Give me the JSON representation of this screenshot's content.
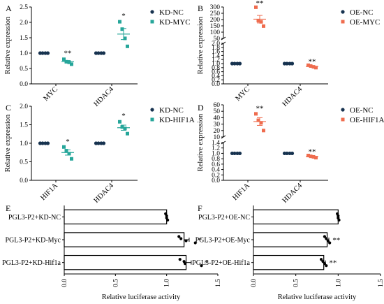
{
  "colors": {
    "nc": "#16324f",
    "knockdown": "#26a69a",
    "overexpression": "#ef6c4e",
    "bar_fill": "#ffffff",
    "axis": "#000000"
  },
  "chart_data": [
    {
      "panel": "A",
      "type": "scatter",
      "ylabel": "Relative expression",
      "categories": [
        "MYC",
        "HDAC4"
      ],
      "ylim": [
        0,
        2.5
      ],
      "yticks": [
        "0.0",
        "0.5",
        "1.0",
        "1.5",
        "2.0",
        "2.5"
      ],
      "legend": [
        "KD-NC",
        "KD-MYC"
      ],
      "series": [
        {
          "name": "KD-NC",
          "color_key": "nc",
          "points": [
            [
              0,
              1.0
            ],
            [
              0,
              1.0
            ],
            [
              0,
              1.0
            ],
            [
              0,
              1.0
            ],
            [
              1,
              1.0
            ],
            [
              1,
              1.0
            ],
            [
              1,
              1.0
            ],
            [
              1,
              1.0
            ]
          ]
        },
        {
          "name": "KD-MYC",
          "color_key": "knockdown",
          "points": [
            [
              0,
              0.8
            ],
            [
              0,
              0.72
            ],
            [
              0,
              0.7
            ],
            [
              0,
              0.64
            ],
            [
              1,
              2.02
            ],
            [
              1,
              1.78
            ],
            [
              1,
              1.48
            ],
            [
              1,
              1.22
            ]
          ],
          "means": [
            0.72,
            1.62
          ],
          "sem": [
            0.04,
            0.18
          ]
        }
      ],
      "annotations": [
        {
          "category": 0,
          "text": "**",
          "y": 0.92
        },
        {
          "category": 1,
          "text": "*",
          "y": 2.14
        }
      ]
    },
    {
      "panel": "B",
      "type": "scatter",
      "ylabel": "Relative expression",
      "categories": [
        "MYC",
        "HDAC4"
      ],
      "axis_break": true,
      "yticks_lower": [
        "0.0",
        "0.2",
        "0.4",
        "0.6",
        "0.8",
        "1.0",
        "1.2",
        "1.4",
        "1.6",
        "1.8",
        "2.0"
      ],
      "yticks_upper": [
        "50",
        "100",
        "150",
        "200",
        "250",
        "300"
      ],
      "legend": [
        "OE-NC",
        "OE-MYC"
      ],
      "series": [
        {
          "name": "OE-NC",
          "color_key": "nc",
          "points": [
            [
              0,
              1.0
            ],
            [
              0,
              1.0
            ],
            [
              0,
              1.0
            ],
            [
              0,
              1.0
            ],
            [
              1,
              1.0
            ],
            [
              1,
              1.0
            ],
            [
              1,
              1.0
            ],
            [
              1,
              1.0
            ]
          ]
        },
        {
          "name": "OE-MYC",
          "color_key": "overexpression",
          "points": [
            [
              0,
              298
            ],
            [
              0,
              192
            ],
            [
              0,
              182
            ],
            [
              0,
              148
            ],
            [
              1,
              0.92
            ],
            [
              1,
              0.88
            ],
            [
              1,
              0.84
            ],
            [
              1,
              0.8
            ]
          ],
          "means": [
            203,
            0.86
          ],
          "sem": [
            30,
            0.03
          ]
        }
      ],
      "annotations": [
        {
          "category": 0,
          "text": "**",
          "y": 312
        },
        {
          "category": 1,
          "text": "**",
          "y": 0.98
        }
      ]
    },
    {
      "panel": "C",
      "type": "scatter",
      "ylabel": "Relative expression",
      "categories": [
        "HIF1A",
        "HDAC4"
      ],
      "ylim": [
        0,
        2.0
      ],
      "yticks": [
        "0.0",
        "0.5",
        "1.0",
        "1.5",
        "2.0"
      ],
      "legend": [
        "KD-NC",
        "KD-HIF1A"
      ],
      "series": [
        {
          "name": "KD-NC",
          "color_key": "nc",
          "points": [
            [
              0,
              1.0
            ],
            [
              0,
              1.0
            ],
            [
              0,
              1.0
            ],
            [
              0,
              1.0
            ],
            [
              1,
              1.0
            ],
            [
              1,
              1.0
            ],
            [
              1,
              1.0
            ],
            [
              1,
              1.0
            ]
          ]
        },
        {
          "name": "KD-HIF1A",
          "color_key": "knockdown",
          "points": [
            [
              0,
              0.9
            ],
            [
              0,
              0.8
            ],
            [
              0,
              0.72
            ],
            [
              0,
              0.58
            ],
            [
              1,
              1.58
            ],
            [
              1,
              1.44
            ],
            [
              1,
              1.4
            ],
            [
              1,
              1.26
            ]
          ],
          "means": [
            0.75,
            1.42
          ],
          "sem": [
            0.07,
            0.07
          ]
        }
      ],
      "annotations": [
        {
          "category": 0,
          "text": "*",
          "y": 0.98
        },
        {
          "category": 1,
          "text": "*",
          "y": 1.68
        }
      ]
    },
    {
      "panel": "D",
      "type": "scatter",
      "ylabel": "Relative expression",
      "categories": [
        "HIF1A",
        "HDAC4"
      ],
      "axis_break": true,
      "yticks_lower": [
        "0.0",
        "0.2",
        "0.4",
        "0.6",
        "0.8",
        "1.0",
        "1.2",
        "1.4"
      ],
      "yticks_upper": [
        "10",
        "20",
        "30",
        "40",
        "50",
        "60"
      ],
      "legend": [
        "OE-NC",
        "OE-HIF1A"
      ],
      "series": [
        {
          "name": "OE-NC",
          "color_key": "nc",
          "points": [
            [
              0,
              1.0
            ],
            [
              0,
              1.0
            ],
            [
              0,
              1.0
            ],
            [
              0,
              1.0
            ],
            [
              1,
              1.0
            ],
            [
              1,
              1.0
            ],
            [
              1,
              1.0
            ],
            [
              1,
              1.0
            ]
          ]
        },
        {
          "name": "OE-HIF1A",
          "color_key": "overexpression",
          "points": [
            [
              0,
              46
            ],
            [
              0,
              36
            ],
            [
              0,
              32
            ],
            [
              0,
              20
            ],
            [
              1,
              0.92
            ],
            [
              1,
              0.89
            ],
            [
              1,
              0.87
            ],
            [
              1,
              0.84
            ]
          ],
          "means": [
            34,
            0.88
          ],
          "sem": [
            6,
            0.02
          ]
        }
      ],
      "annotations": [
        {
          "category": 0,
          "text": "**",
          "y": 51
        },
        {
          "category": 1,
          "text": "**",
          "y": 0.97
        }
      ]
    },
    {
      "panel": "E",
      "type": "bar",
      "orientation": "horizontal",
      "xlabel": "Relative luciferase activity",
      "xlim": [
        0,
        1.5
      ],
      "xticks": [
        "0.0",
        "0.5",
        "1.0",
        "1.5"
      ],
      "categories": [
        "PGL3-P2+KD-NC",
        "PGL3-P2+KD-Myc",
        "PGL3-P2+KD-Hif1a"
      ],
      "values": [
        1.0,
        1.17,
        1.19
      ],
      "errors": [
        0.0,
        0.05,
        0.05
      ],
      "points": [
        [
          0.99,
          1.0,
          1.0,
          1.01
        ],
        [
          1.12,
          1.14,
          1.19,
          1.28
        ],
        [
          1.13,
          1.17,
          1.18,
          1.34
        ]
      ],
      "annotations": [
        "",
        "*",
        "*"
      ]
    },
    {
      "panel": "F",
      "type": "bar",
      "orientation": "horizontal",
      "xlabel": "Relative luciferase activity",
      "xlim": [
        0,
        1.5
      ],
      "xticks": [
        "0.0",
        "0.5",
        "1.0",
        "1.5"
      ],
      "categories": [
        "PGL3-P2+OE-NC",
        "PGL3-P2+OE-Myc",
        "PGL3-P2+OE-Hif1a"
      ],
      "values": [
        1.0,
        0.87,
        0.83
      ],
      "errors": [
        0.0,
        0.02,
        0.02
      ],
      "points": [
        [
          0.99,
          1.0,
          1.0,
          1.01
        ],
        [
          0.84,
          0.86,
          0.88,
          0.9
        ],
        [
          0.8,
          0.82,
          0.84,
          0.86
        ]
      ],
      "annotations": [
        "",
        "**",
        "**"
      ]
    }
  ]
}
